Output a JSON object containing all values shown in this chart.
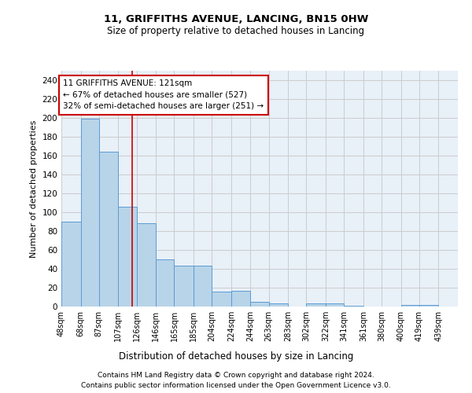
{
  "title1": "11, GRIFFITHS AVENUE, LANCING, BN15 0HW",
  "title2": "Size of property relative to detached houses in Lancing",
  "xlabel": "Distribution of detached houses by size in Lancing",
  "ylabel": "Number of detached properties",
  "footnote1": "Contains HM Land Registry data © Crown copyright and database right 2024.",
  "footnote2": "Contains public sector information licensed under the Open Government Licence v3.0.",
  "annotation_line1": "11 GRIFFITHS AVENUE: 121sqm",
  "annotation_line2": "← 67% of detached houses are smaller (527)",
  "annotation_line3": "32% of semi-detached houses are larger (251) →",
  "property_size": 121,
  "bar_left_edges": [
    48,
    68,
    87,
    107,
    126,
    146,
    165,
    185,
    204,
    224,
    244,
    263,
    283,
    302,
    322,
    341,
    361,
    380,
    400,
    419
  ],
  "bar_widths": [
    20,
    19,
    20,
    19,
    20,
    19,
    20,
    19,
    20,
    20,
    19,
    20,
    19,
    20,
    19,
    20,
    19,
    20,
    19,
    20
  ],
  "bar_heights": [
    90,
    199,
    164,
    106,
    88,
    50,
    43,
    43,
    16,
    17,
    5,
    3,
    0,
    3,
    3,
    1,
    0,
    0,
    2,
    2
  ],
  "bar_color": "#b8d4e8",
  "bar_edge_color": "#5b9bd5",
  "vline_color": "#cc0000",
  "vline_x": 121,
  "annotation_box_color": "#ffffff",
  "annotation_box_edge": "#cc0000",
  "ylim": [
    0,
    250
  ],
  "yticks": [
    0,
    20,
    40,
    60,
    80,
    100,
    120,
    140,
    160,
    180,
    200,
    220,
    240
  ],
  "grid_color": "#cccccc",
  "bg_color": "#e8f0f8",
  "tick_labels": [
    "48sqm",
    "68sqm",
    "87sqm",
    "107sqm",
    "126sqm",
    "146sqm",
    "165sqm",
    "185sqm",
    "204sqm",
    "224sqm",
    "244sqm",
    "263sqm",
    "283sqm",
    "302sqm",
    "322sqm",
    "341sqm",
    "361sqm",
    "380sqm",
    "400sqm",
    "419sqm",
    "439sqm"
  ]
}
